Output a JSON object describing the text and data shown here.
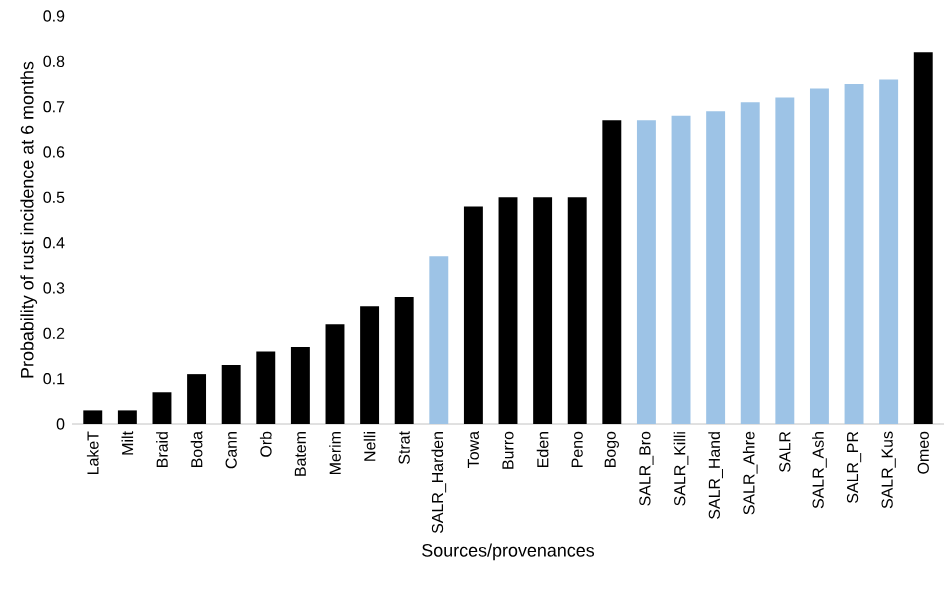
{
  "chart_data": {
    "type": "bar",
    "xlabel": "Sources/provenances",
    "ylabel": "Probability of rust incidence at 6 months",
    "categories": [
      "LakeT",
      "Milt",
      "Braid",
      "Boda",
      "Cann",
      "Orb",
      "Batem",
      "Merim",
      "Nelli",
      "Strat",
      "SALR_Harden",
      "Towa",
      "Burro",
      "Eden",
      "Peno",
      "Bogo",
      "SALR_Bro",
      "SALR_Killi",
      "SALR_Hand",
      "SALR_Ahre",
      "SALR",
      "SALR_Ash",
      "SALR_PR",
      "SALR_Kus",
      "Omeo"
    ],
    "values": [
      0.03,
      0.03,
      0.07,
      0.11,
      0.13,
      0.16,
      0.17,
      0.22,
      0.26,
      0.28,
      0.37,
      0.48,
      0.5,
      0.5,
      0.5,
      0.67,
      0.67,
      0.68,
      0.69,
      0.71,
      0.72,
      0.74,
      0.75,
      0.76,
      0.82
    ],
    "colors": [
      "#000000",
      "#000000",
      "#000000",
      "#000000",
      "#000000",
      "#000000",
      "#000000",
      "#000000",
      "#000000",
      "#000000",
      "#9dc3e6",
      "#000000",
      "#000000",
      "#000000",
      "#000000",
      "#000000",
      "#9dc3e6",
      "#9dc3e6",
      "#9dc3e6",
      "#9dc3e6",
      "#9dc3e6",
      "#9dc3e6",
      "#9dc3e6",
      "#9dc3e6",
      "#000000"
    ],
    "ylim": [
      0,
      0.9
    ],
    "yticks": [
      0,
      0.1,
      0.2,
      0.3,
      0.4,
      0.5,
      0.6,
      0.7,
      0.8,
      0.9
    ],
    "grid": false
  }
}
